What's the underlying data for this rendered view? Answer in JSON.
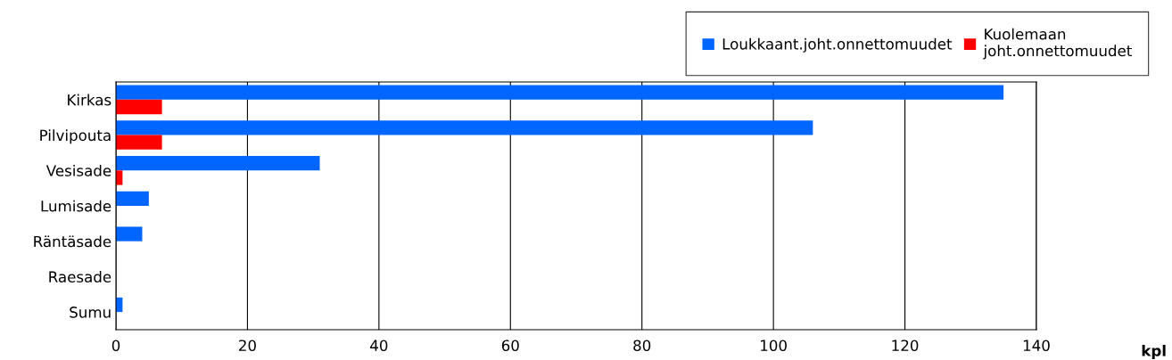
{
  "chart_data": {
    "type": "bar",
    "orientation": "horizontal",
    "annotations": [
      "kpl"
    ],
    "categories": [
      "Kirkas",
      "Pilvipouta",
      "Vesisade",
      "Lumisade",
      "Räntäsade",
      "Raesade",
      "Sumu"
    ],
    "series": [
      {
        "name": "Loukkaant.joht.onnettomuudet",
        "color": "#0066ff",
        "values": [
          135,
          106,
          31,
          5,
          4,
          0,
          1
        ]
      },
      {
        "name": "Kuolemaan\njoht.onnettomuudet",
        "color": "#ff0000",
        "values": [
          7,
          7,
          1,
          0,
          0,
          0,
          0
        ]
      }
    ],
    "xlim": [
      0,
      140
    ],
    "xticks": [
      0,
      20,
      40,
      60,
      80,
      100,
      120,
      140
    ],
    "grid": "x",
    "legend": "top right"
  }
}
